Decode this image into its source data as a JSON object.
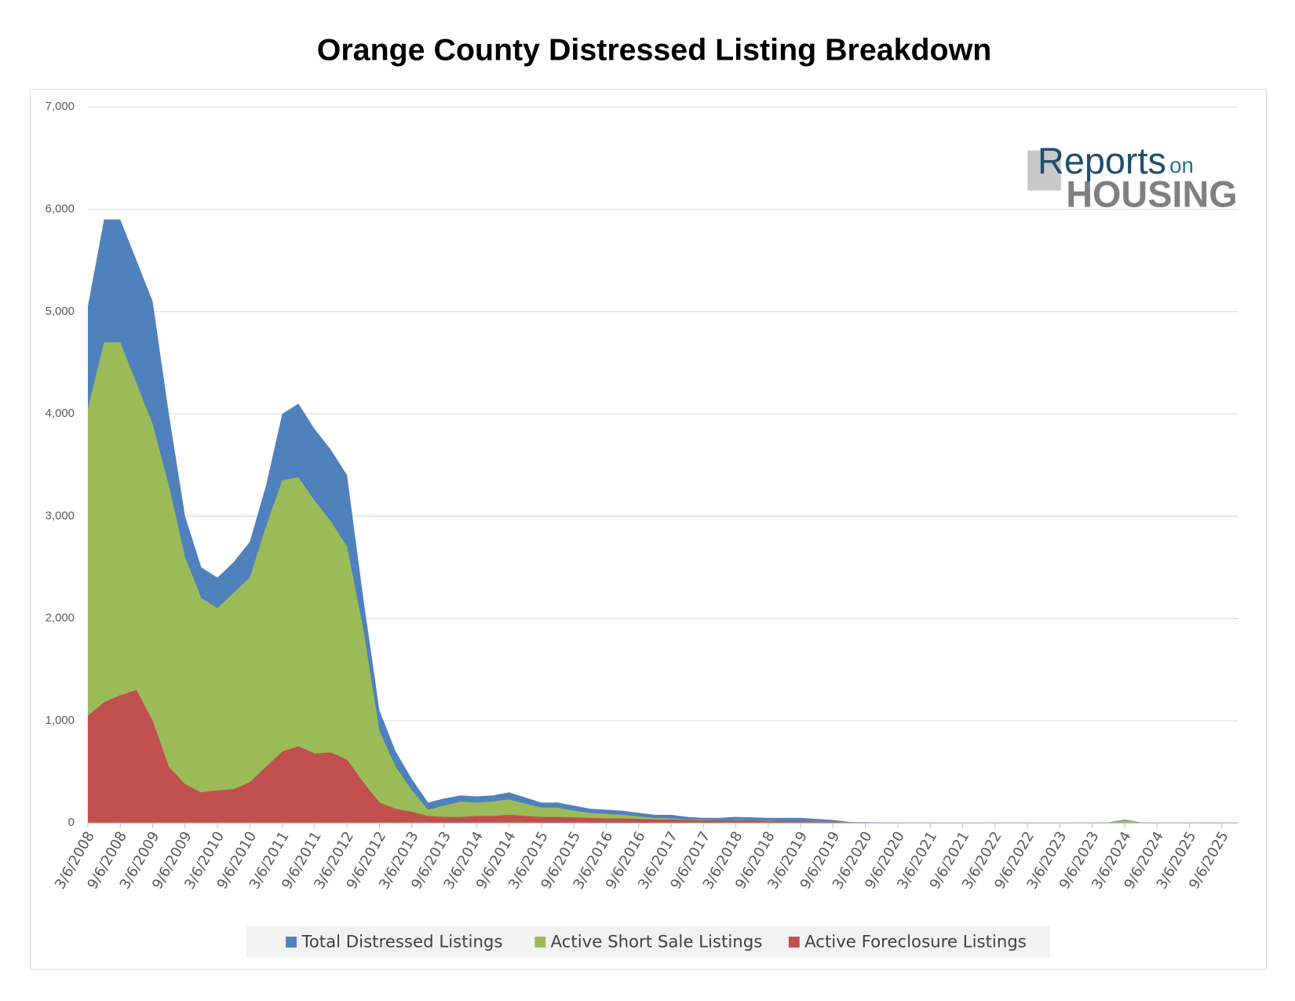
{
  "chart_data": {
    "type": "area",
    "title": "Orange County Distressed Listing Breakdown",
    "logo": {
      "brand": "Reports",
      "connector": "on",
      "subject": "HOUSING"
    },
    "categories": [
      "3/6/2008",
      null,
      "9/6/2008",
      null,
      "3/6/2009",
      null,
      "9/6/2009",
      null,
      "3/6/2010",
      null,
      "9/6/2010",
      null,
      "3/6/2011",
      null,
      "9/6/2011",
      null,
      "3/6/2012",
      null,
      "9/6/2012",
      null,
      "3/6/2013",
      null,
      "9/6/2013",
      null,
      "3/6/2014",
      null,
      "9/6/2014",
      null,
      "3/6/2015",
      null,
      "9/6/2015",
      null,
      "3/6/2016",
      null,
      "9/6/2016",
      null,
      "3/6/2017",
      null,
      "9/6/2017",
      null,
      "3/6/2018",
      null,
      "9/6/2018",
      null,
      "3/6/2019",
      null,
      "9/6/2019",
      null,
      "3/6/2020",
      null,
      "9/6/2020",
      null,
      "3/6/2021",
      null,
      "9/6/2021",
      null,
      "3/6/2022",
      null,
      "9/6/2022",
      null,
      "3/6/2023",
      null,
      "9/6/2023",
      null,
      "3/6/2024",
      null,
      "9/6/2024",
      null,
      "3/6/2025",
      null,
      "9/6/2025",
      null
    ],
    "series": [
      {
        "name": "Total Distressed Listings",
        "color": "#4f81bd",
        "values": [
          5050,
          5900,
          5900,
          5500,
          5100,
          4000,
          3000,
          2500,
          2400,
          2550,
          2750,
          3300,
          4000,
          4100,
          3850,
          3650,
          3400,
          2200,
          1100,
          700,
          430,
          200,
          240,
          270,
          260,
          270,
          300,
          250,
          200,
          200,
          170,
          140,
          130,
          120,
          100,
          80,
          80,
          60,
          50,
          50,
          60,
          55,
          50,
          50,
          50,
          40,
          30,
          10,
          8,
          6,
          5,
          5,
          5,
          4,
          4,
          4,
          5,
          5,
          5,
          4,
          4,
          5,
          5,
          6,
          35,
          6,
          5,
          5,
          5,
          6,
          5,
          5
        ]
      },
      {
        "name": "Active Short Sale Listings",
        "color": "#9bbb59",
        "values": [
          4050,
          4700,
          4700,
          4300,
          3900,
          3300,
          2600,
          2200,
          2100,
          2250,
          2400,
          2900,
          3350,
          3380,
          3150,
          2950,
          2700,
          1900,
          900,
          550,
          320,
          130,
          170,
          210,
          200,
          210,
          230,
          190,
          150,
          150,
          120,
          100,
          90,
          80,
          65,
          50,
          45,
          35,
          30,
          25,
          30,
          25,
          25,
          20,
          20,
          20,
          15,
          5,
          3,
          2,
          2,
          2,
          2,
          1,
          1,
          1,
          2,
          2,
          2,
          1,
          1,
          2,
          2,
          2,
          30,
          2,
          2,
          2,
          2,
          2,
          2,
          2
        ]
      },
      {
        "name": "Active Foreclosure Listings",
        "color": "#c0504d",
        "values": [
          1050,
          1180,
          1250,
          1300,
          1000,
          550,
          380,
          300,
          320,
          330,
          400,
          550,
          700,
          750,
          680,
          690,
          620,
          400,
          200,
          140,
          110,
          70,
          60,
          60,
          70,
          70,
          80,
          70,
          60,
          60,
          55,
          50,
          45,
          45,
          40,
          35,
          35,
          30,
          25,
          25,
          25,
          25,
          20,
          20,
          20,
          15,
          12,
          5,
          3,
          2,
          2,
          2,
          2,
          2,
          2,
          2,
          2,
          2,
          2,
          2,
          2,
          2,
          2,
          2,
          3,
          2,
          2,
          2,
          2,
          2,
          2,
          2
        ]
      }
    ],
    "ylim": [
      0,
      7000
    ],
    "yticks": [
      0,
      {
        "value": 1000,
        "label": "1,000"
      },
      {
        "value": 2000,
        "label": "2,000"
      },
      {
        "value": 3000,
        "label": "3,000"
      },
      {
        "value": 4000,
        "label": "4,000"
      },
      {
        "value": 5000,
        "label": "5,000"
      },
      {
        "value": 6000,
        "label": "6,000"
      },
      {
        "value": 7000,
        "label": "7,000"
      }
    ],
    "grid": true,
    "legend": "bottom"
  }
}
